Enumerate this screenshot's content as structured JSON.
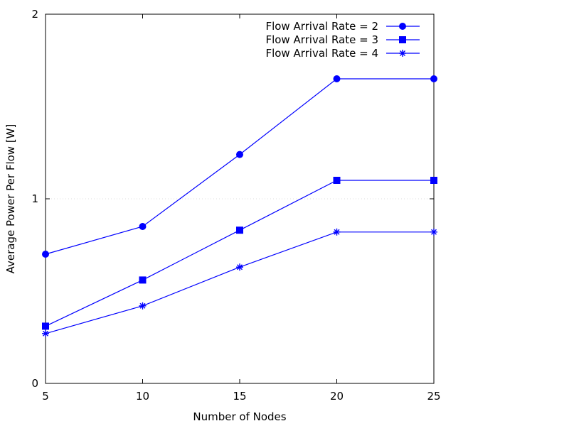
{
  "chart_data": {
    "type": "line",
    "title": "",
    "xlabel": "Number of Nodes",
    "ylabel": "Average Power Per Flow [W]",
    "xlim": [
      5,
      25
    ],
    "ylim": [
      0,
      2
    ],
    "x_ticks": [
      5,
      10,
      15,
      20,
      25
    ],
    "y_ticks": [
      0,
      1,
      2
    ],
    "grid": "horizontal dotted at y=1",
    "legend_position": "top-right",
    "line_color": "#0000ff",
    "x": [
      5,
      10,
      15,
      20,
      25
    ],
    "series": [
      {
        "name": "Flow Arrival Rate = 2",
        "marker": "circle",
        "values": [
          0.7,
          0.85,
          1.24,
          1.65,
          1.65
        ]
      },
      {
        "name": "Flow Arrival Rate = 3",
        "marker": "square",
        "values": [
          0.31,
          0.56,
          0.83,
          1.1,
          1.1
        ]
      },
      {
        "name": "Flow Arrival Rate = 4",
        "marker": "asterisk",
        "values": [
          0.27,
          0.42,
          0.63,
          0.82,
          0.82
        ]
      }
    ]
  }
}
